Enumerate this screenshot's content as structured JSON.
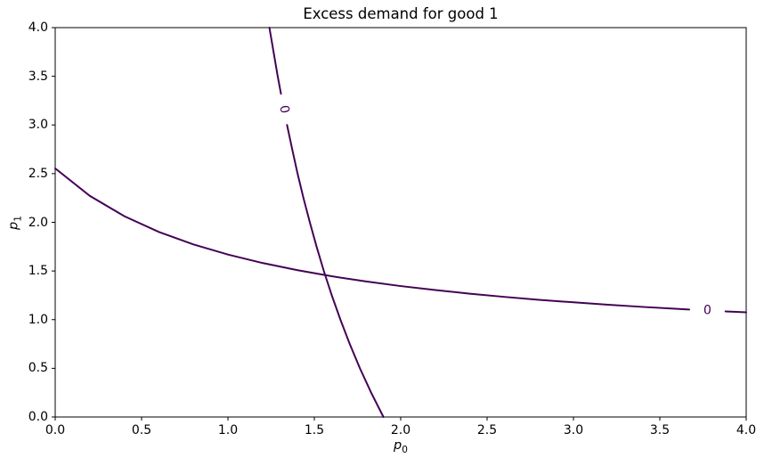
{
  "chart_data": {
    "type": "contour",
    "title": "Excess demand for good 1",
    "xlabel": {
      "base": "p",
      "sub": "0"
    },
    "ylabel": {
      "base": "p",
      "sub": "1"
    },
    "xlim": [
      0,
      4
    ],
    "ylim": [
      0,
      4
    ],
    "xtick_values": [
      0.0,
      0.5,
      1.0,
      1.5,
      2.0,
      2.5,
      3.0,
      3.5,
      4.0
    ],
    "xtick_labels": [
      "0.0",
      "0.5",
      "1.0",
      "1.5",
      "2.0",
      "2.5",
      "3.0",
      "3.5",
      "4.0"
    ],
    "ytick_values": [
      0.0,
      0.5,
      1.0,
      1.5,
      2.0,
      2.5,
      3.0,
      3.5,
      4.0
    ],
    "ytick_labels": [
      "0.0",
      "0.5",
      "1.0",
      "1.5",
      "2.0",
      "2.5",
      "3.0",
      "3.5",
      "4.0"
    ],
    "grid": false,
    "legend": null,
    "line_color": "#440154",
    "line_width": 2,
    "spine_color": "#000000",
    "contours": [
      {
        "level": 0,
        "label": "0",
        "description": "flat decreasing zero-contour from (0, 2.55) to (4, 1.07)",
        "segments": [
          [
            [
              0.0,
              2.554
            ],
            [
              0.2,
              2.272
            ],
            [
              0.4,
              2.063
            ],
            [
              0.6,
              1.901
            ],
            [
              0.8,
              1.773
            ],
            [
              1.0,
              1.669
            ],
            [
              1.2,
              1.582
            ],
            [
              1.4,
              1.509
            ],
            [
              1.6,
              1.446
            ],
            [
              1.8,
              1.392
            ],
            [
              2.0,
              1.345
            ],
            [
              2.2,
              1.304
            ],
            [
              2.4,
              1.267
            ],
            [
              2.6,
              1.234
            ],
            [
              2.8,
              1.204
            ],
            [
              3.0,
              1.178
            ],
            [
              3.2,
              1.153
            ],
            [
              3.4,
              1.131
            ],
            [
              3.6,
              1.111
            ],
            [
              3.67,
              1.104
            ]
          ],
          [
            [
              3.88,
              1.085
            ],
            [
              4.0,
              1.075
            ]
          ]
        ],
        "label_pos": [
          3.775,
          1.095
        ],
        "label_rotation": 3
      },
      {
        "level": 0,
        "label": "0",
        "description": "steep zero-contour from (1.24, 4.0) down to (1.90, 0.0)",
        "segments": [
          [
            [
              1.24,
              4.0
            ],
            [
              1.264,
              3.75
            ],
            [
              1.288,
              3.5
            ],
            [
              1.307,
              3.32
            ]
          ],
          [
            [
              1.342,
              3.0
            ],
            [
              1.372,
              2.75
            ],
            [
              1.403,
              2.5
            ],
            [
              1.437,
              2.25
            ],
            [
              1.474,
              2.0
            ],
            [
              1.513,
              1.75
            ],
            [
              1.555,
              1.5
            ],
            [
              1.601,
              1.25
            ],
            [
              1.651,
              1.0
            ],
            [
              1.705,
              0.75
            ],
            [
              1.764,
              0.5
            ],
            [
              1.829,
              0.25
            ],
            [
              1.9,
              0.0
            ]
          ]
        ],
        "label_pos": [
          1.325,
          3.16
        ],
        "label_rotation": 79
      }
    ],
    "intersection_point": [
      1.56,
      1.46
    ]
  }
}
